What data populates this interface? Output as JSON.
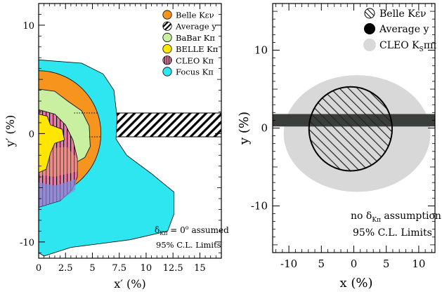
{
  "chart_data": [
    {
      "type": "contour",
      "xlabel": "x′ (%)",
      "ylabel": "y′ (%)",
      "xlim": [
        0,
        17
      ],
      "ylim": [
        -11.5,
        12
      ],
      "xticks": [
        "0",
        "2.5",
        "5",
        "7.5",
        "10",
        "12.5",
        "15"
      ],
      "yticks": [
        "10",
        "0",
        "-10"
      ],
      "legend_position": "top-right",
      "legend": [
        {
          "label": "Belle Kεν",
          "color": "#f7941d",
          "marker": "circle"
        },
        {
          "label": "Average y",
          "color": "#000000",
          "marker": "hatched-circle"
        },
        {
          "label": "BaBar Kπ",
          "color": "#c8f0a0",
          "marker": "circle"
        },
        {
          "label": "BELLE Kπ",
          "color": "#ffe600",
          "marker": "circle"
        },
        {
          "label": "CLEO Kπ",
          "color": "#e87aa8",
          "marker": "striped-circle"
        },
        {
          "label": "Focus Kπ",
          "color": "#2ee6f0",
          "marker": "circle"
        }
      ],
      "average_y_band": {
        "y_low": -0.3,
        "y_high": 1.9
      },
      "regions": [
        {
          "name": "Focus Kπ",
          "color": "#2ee6f0",
          "outline": [
            [
              0,
              6.8
            ],
            [
              4,
              6.5
            ],
            [
              6,
              5.5
            ],
            [
              7,
              4
            ],
            [
              7.3,
              1.5
            ],
            [
              7.2,
              -0.5
            ],
            [
              8.2,
              -2
            ],
            [
              10.5,
              -3.7
            ],
            [
              12.6,
              -5.4
            ],
            [
              12.6,
              -7.4
            ],
            [
              12,
              -9
            ],
            [
              8.5,
              -9.8
            ],
            [
              3,
              -10.5
            ],
            [
              0.5,
              -11.3
            ],
            [
              0,
              -11
            ]
          ]
        },
        {
          "name": "Belle Kεν",
          "color": "#f7941d",
          "cx": 0,
          "cy": 0,
          "r": 5.8
        },
        {
          "name": "BaBar Kπ",
          "color": "#c8f0a0",
          "outline": [
            [
              0,
              4.1
            ],
            [
              1.5,
              3.9
            ],
            [
              2.7,
              3
            ],
            [
              4,
              2.1
            ],
            [
              4.7,
              0.7
            ],
            [
              4.8,
              -1.2
            ],
            [
              4.3,
              -2.2
            ],
            [
              2.5,
              -3.2
            ],
            [
              0,
              -3.7
            ]
          ]
        },
        {
          "name": "CLEO Kπ",
          "color": "#e87aa8",
          "outline": [
            [
              0,
              2.2
            ],
            [
              1.5,
              1.8
            ],
            [
              2.5,
              0.8
            ],
            [
              3.2,
              -0.6
            ],
            [
              3.6,
              -2.3
            ],
            [
              3.6,
              -4
            ],
            [
              3.1,
              -5.2
            ],
            [
              2,
              -6.2
            ],
            [
              0,
              -6.8
            ]
          ]
        },
        {
          "name": "BELLE Kπ",
          "color": "#ffe600",
          "outline": [
            [
              0,
              1.8
            ],
            [
              0.8,
              1.6
            ],
            [
              1.1,
              0.8
            ],
            [
              2.2,
              0.4
            ],
            [
              2.4,
              -0.6
            ],
            [
              1.5,
              -0.9
            ],
            [
              1.1,
              -1.8
            ],
            [
              0.7,
              -3.3
            ],
            [
              0,
              -3.6
            ]
          ]
        }
      ],
      "annotation_lines": [
        {
          "text": "δ",
          "sub": "Kπ",
          "rest": " = 0",
          "sup": "o",
          "tail": " assumed"
        },
        {
          "text": "95% C.L. Limits"
        }
      ]
    },
    {
      "type": "contour",
      "xlabel": "x (%)",
      "ylabel": "y (%)",
      "xlim": [
        -12.5,
        12.5
      ],
      "ylim": [
        -16,
        16
      ],
      "xticks": [
        "-10",
        "5",
        "0",
        "5",
        "10"
      ],
      "yticks": [
        "10",
        "0",
        "-10"
      ],
      "legend_position": "top-right",
      "legend": [
        {
          "label": "Belle Kεν",
          "color": "#ffffff",
          "marker": "hatched-circle"
        },
        {
          "label": "Average y",
          "color": "#000000",
          "marker": "circle"
        },
        {
          "label": "CLEO K",
          "sub": "S",
          "tail": "ππ",
          "color": "#d8d8d8",
          "marker": "circle"
        }
      ],
      "average_y_band": {
        "y_low": 0.2,
        "y_high": 1.8
      },
      "regions": [
        {
          "name": "CLEO K_Sππ",
          "color": "#d8d8d8",
          "cx": 0.5,
          "cy": -0.7,
          "rx": 11.3,
          "ry": 7.5
        },
        {
          "name": "Belle Kεν",
          "cx": -0.5,
          "cy": -0.1,
          "rx": 6.4,
          "ry": 5.4
        }
      ],
      "annotation_lines": [
        {
          "text": "no δ",
          "sub": "Kπ",
          "tail": " assumption"
        },
        {
          "text": "95% C.L. Limits"
        }
      ]
    }
  ]
}
